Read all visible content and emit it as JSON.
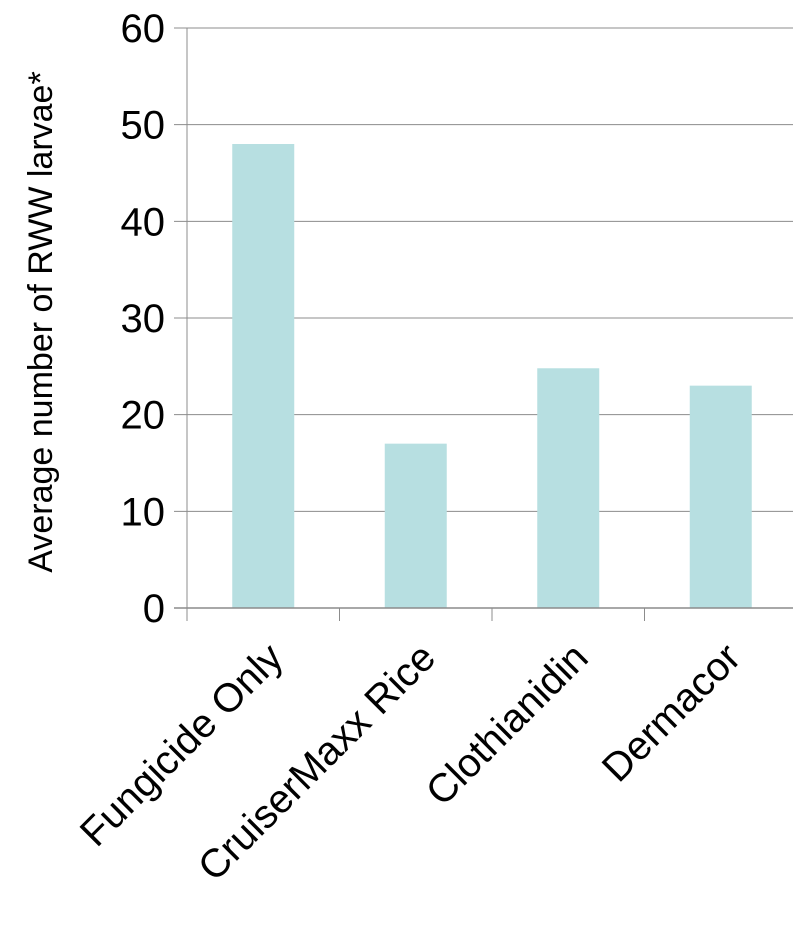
{
  "chart_data": {
    "type": "bar",
    "title": "",
    "xlabel": "",
    "ylabel": "Average number of RWW larvae*",
    "categories": [
      "Fungicide Only",
      "CruiserMaxx Rice",
      "Clothianidin",
      "Dermacor"
    ],
    "values": [
      48,
      17,
      24.8,
      23
    ],
    "ylim": [
      0,
      60
    ],
    "yticks": [
      0,
      10,
      20,
      30,
      40,
      50,
      60
    ],
    "grid": true,
    "legend": "none",
    "colors": {
      "bar": "#b7dfe1",
      "grid": "#8c8c8c",
      "axis": "#8c8c8c",
      "text": "#000000"
    }
  }
}
